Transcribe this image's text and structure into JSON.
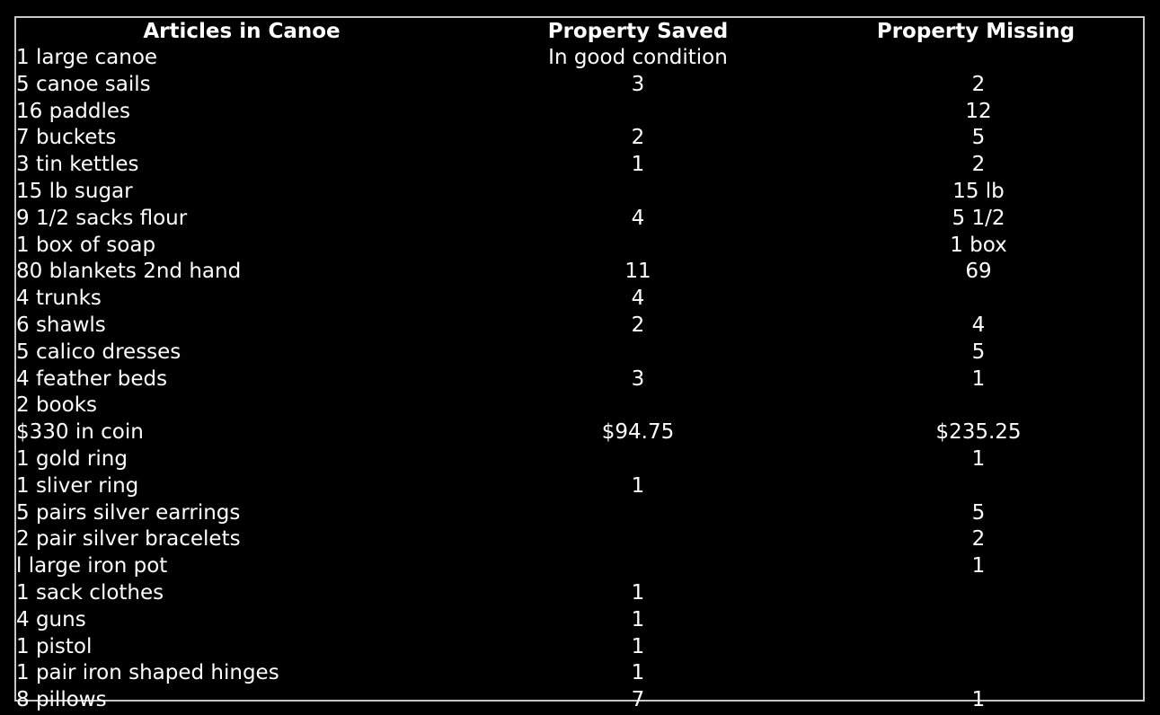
{
  "colors": {
    "background": "#000000",
    "text": "#ffffff",
    "border": "#c8c8c8"
  },
  "table": {
    "headers": [
      "Articles in Canoe",
      "Property Saved",
      "Property Missing"
    ],
    "rows": [
      {
        "article": "1 large canoe",
        "saved": "In good condition",
        "missing": ""
      },
      {
        "article": "5 canoe sails",
        "saved": "3",
        "missing": "2"
      },
      {
        "article": "16 paddles",
        "saved": "",
        "missing": "12"
      },
      {
        "article": "7 buckets",
        "saved": "2",
        "missing": "5"
      },
      {
        "article": "3 tin kettles",
        "saved": "1",
        "missing": "2"
      },
      {
        "article": "15 lb sugar",
        "saved": "",
        "missing": "15 lb"
      },
      {
        "article": "9 1/2 sacks flour",
        "saved": "4",
        "missing": "5 1/2"
      },
      {
        "article": "1 box of soap",
        "saved": "",
        "missing": "1 box"
      },
      {
        "article": "80 blankets 2nd hand",
        "saved": "11",
        "missing": "69"
      },
      {
        "article": "4 trunks",
        "saved": "4",
        "missing": ""
      },
      {
        "article": "6 shawls",
        "saved": "2",
        "missing": "4"
      },
      {
        "article": "5 calico dresses",
        "saved": "",
        "missing": "5"
      },
      {
        "article": "4 feather beds",
        "saved": "3",
        "missing": "1"
      },
      {
        "article": "2 books",
        "saved": "",
        "missing": ""
      },
      {
        "article": "$330 in coin",
        "saved": "$94.75",
        "missing": "$235.25"
      },
      {
        "article": "1 gold ring",
        "saved": "",
        "missing": "1"
      },
      {
        "article": "1 sliver ring",
        "saved": "1",
        "missing": ""
      },
      {
        "article": "5 pairs silver earrings",
        "saved": "",
        "missing": "5"
      },
      {
        "article": "2 pair silver bracelets",
        "saved": "",
        "missing": "2"
      },
      {
        "article": "l large iron pot",
        "saved": "",
        "missing": "1"
      },
      {
        "article": "1 sack clothes",
        "saved": "1",
        "missing": ""
      },
      {
        "article": "4 guns",
        "saved": "1",
        "missing": ""
      },
      {
        "article": "1 pistol",
        "saved": "1",
        "missing": ""
      },
      {
        "article": "1 pair iron shaped hinges",
        "saved": "1",
        "missing": ""
      },
      {
        "article": "8 pillows",
        "saved": "7",
        "missing": "1"
      }
    ]
  }
}
